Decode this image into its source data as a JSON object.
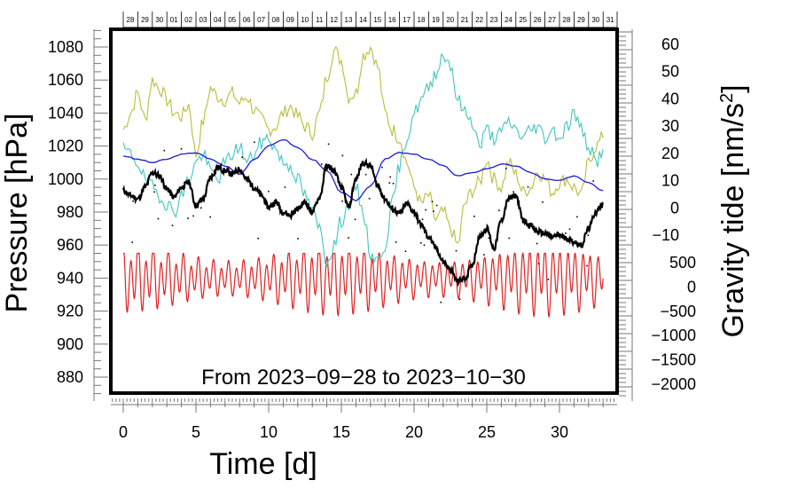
{
  "chart_data": {
    "type": "line",
    "annotation": "From 2023−09−28 to 2023−10−30",
    "xlabel": "Time [d]",
    "ylabel_left": "Pressure [hPa]",
    "ylabel_right": "Gravity tide [nm/s",
    "ylabel_right_sup": "2",
    "ylabel_right_end": "]",
    "xlim": [
      -0.8,
      34
    ],
    "x_ticks": [
      "0",
      "5",
      "10",
      "15",
      "20",
      "25",
      "30"
    ],
    "ylim_left": [
      868,
      1090
    ],
    "y_ticks_left": [
      "880",
      "900",
      "920",
      "940",
      "960",
      "980",
      "1000",
      "1020",
      "1040",
      "1060",
      "1080"
    ],
    "y_ticks_right_upper": [
      "−10",
      "0",
      "10",
      "20",
      "30",
      "40",
      "50",
      "60"
    ],
    "y_ticks_right_lower": [
      "−2000",
      "−1500",
      "−1000",
      "−500",
      "0",
      "500"
    ],
    "day_labels": [
      "28",
      "29",
      "30",
      "01",
      "02",
      "03",
      "04",
      "05",
      "06",
      "07",
      "08",
      "09",
      "10",
      "11",
      "12",
      "13",
      "14",
      "15",
      "16",
      "17",
      "18",
      "19",
      "20",
      "21",
      "22",
      "23",
      "24",
      "25",
      "26",
      "27",
      "28",
      "29",
      "30",
      "31"
    ],
    "series": [
      {
        "name": "pressure",
        "color": "#000000",
        "x": [
          0,
          0.5,
          1,
          1.5,
          2,
          2.5,
          3,
          3.5,
          4,
          4.5,
          5,
          5.5,
          6,
          6.5,
          7,
          7.5,
          8,
          8.5,
          9,
          9.5,
          10,
          10.5,
          11,
          11.5,
          12,
          12.5,
          13,
          13.5,
          14,
          14.5,
          15,
          15.5,
          16,
          16.5,
          17,
          17.5,
          18,
          18.5,
          19,
          19.5,
          20,
          20.5,
          21,
          21.5,
          22,
          22.5,
          23,
          23.5,
          24,
          24.5,
          25,
          25.5,
          26,
          26.5,
          27,
          27.5,
          28,
          28.5,
          29,
          29.5,
          30,
          30.5,
          31,
          31.5,
          32,
          32.5,
          33
        ],
        "values": [
          993,
          990,
          988,
          995,
          1004,
          1002,
          994,
          989,
          995,
          998,
          984,
          988,
          1001,
          1007,
          1005,
          1003,
          1006,
          1000,
          995,
          990,
          983,
          986,
          980,
          978,
          982,
          986,
          980,
          989,
          1008,
          1005,
          995,
          983,
          1000,
          1010,
          1008,
          996,
          988,
          982,
          979,
          985,
          980,
          972,
          965,
          958,
          950,
          945,
          938,
          940,
          948,
          965,
          970,
          958,
          975,
          988,
          990,
          975,
          972,
          968,
          967,
          965,
          966,
          964,
          962,
          960,
          970,
          980,
          985
        ]
      },
      {
        "name": "model-blue",
        "color": "#1a1ad6",
        "x": [
          0,
          1,
          2,
          3,
          4,
          5,
          6,
          7,
          8,
          9,
          10,
          11,
          12,
          13,
          14,
          15,
          16,
          17,
          18,
          19,
          20,
          21,
          22,
          23,
          24,
          25,
          26,
          27,
          28,
          29,
          30,
          31,
          32,
          33
        ],
        "values": [
          1014,
          1012,
          1010,
          1012,
          1015,
          1016,
          1012,
          1008,
          1003,
          1012,
          1020,
          1024,
          1019,
          1012,
          1005,
          992,
          987,
          996,
          1012,
          1016,
          1015,
          1012,
          1008,
          1002,
          1004,
          1006,
          1009,
          1008,
          1004,
          1000,
          999,
          1002,
          998,
          993
        ]
      },
      {
        "name": "gravity-olive",
        "color": "#bcbc3a",
        "x": [
          0,
          0.5,
          1,
          1.5,
          2,
          2.5,
          3,
          3.5,
          4,
          4.5,
          5,
          5.5,
          6,
          6.5,
          7,
          7.5,
          8,
          8.5,
          9,
          9.5,
          10,
          10.5,
          11,
          11.5,
          12,
          12.5,
          13,
          13.5,
          14,
          14.5,
          15,
          15.5,
          16,
          16.5,
          17,
          17.5,
          18,
          18.5,
          19,
          19.5,
          20,
          20.5,
          21,
          21.5,
          22,
          22.5,
          23,
          23.5,
          24,
          24.5,
          25,
          25.5,
          26,
          26.5,
          27,
          27.5,
          28,
          28.5,
          29,
          29.5,
          30,
          30.5,
          31,
          31.5,
          32,
          32.5,
          33
        ],
        "values": [
          1030,
          1040,
          1052,
          1036,
          1060,
          1055,
          1048,
          1040,
          1038,
          1045,
          1015,
          1035,
          1055,
          1050,
          1048,
          1052,
          1046,
          1050,
          1042,
          1036,
          1030,
          1032,
          1040,
          1044,
          1038,
          1032,
          1028,
          1040,
          1062,
          1078,
          1072,
          1050,
          1052,
          1075,
          1080,
          1068,
          1040,
          1030,
          1025,
          1010,
          995,
          985,
          990,
          975,
          980,
          970,
          960,
          985,
          993,
          998,
          1012,
          1000,
          995,
          1010,
          1003,
          992,
          995,
          1005,
          1000,
          992,
          998,
          1000,
          995,
          990,
          1010,
          1020,
          1025
        ]
      },
      {
        "name": "gravity-cyan",
        "color": "#3fc7bf",
        "x": [
          0,
          0.5,
          1,
          1.5,
          2,
          2.5,
          3,
          3.5,
          4,
          4.5,
          5,
          5.5,
          6,
          6.5,
          7,
          7.5,
          8,
          8.5,
          9,
          9.5,
          10,
          10.5,
          11,
          11.5,
          12,
          12.5,
          13,
          13.5,
          14,
          14.5,
          15,
          15.5,
          16,
          16.5,
          17,
          17.5,
          18,
          18.5,
          19,
          19.5,
          20,
          20.5,
          21,
          21.5,
          22,
          22.5,
          23,
          23.5,
          24,
          24.5,
          25,
          25.5,
          26,
          26.5,
          27,
          27.5,
          28,
          28.5,
          29,
          29.5,
          30,
          30.5,
          31,
          31.5,
          32,
          32.5,
          33
        ],
        "values": [
          1018,
          1015,
          1010,
          1000,
          995,
          990,
          985,
          980,
          990,
          1000,
          1010,
          1015,
          1005,
          1000,
          1010,
          1015,
          1020,
          1010,
          1015,
          1022,
          1025,
          1018,
          1010,
          1008,
          1000,
          990,
          980,
          970,
          950,
          960,
          975,
          985,
          995,
          980,
          955,
          950,
          960,
          985,
          1008,
          1025,
          1040,
          1048,
          1055,
          1065,
          1075,
          1070,
          1048,
          1040,
          1035,
          1020,
          1030,
          1025,
          1028,
          1035,
          1030,
          1025,
          1030,
          1032,
          1025,
          1030,
          1025,
          1032,
          1040,
          1030,
          1020,
          1010,
          1018
        ]
      },
      {
        "name": "tide-red",
        "color": "#e02020"
      }
    ],
    "red_tide_envelope": {
      "center_hPa": 930,
      "upper_hPa": 955,
      "lower_hPa": 907,
      "cycles_per_day": 1.93
    }
  }
}
